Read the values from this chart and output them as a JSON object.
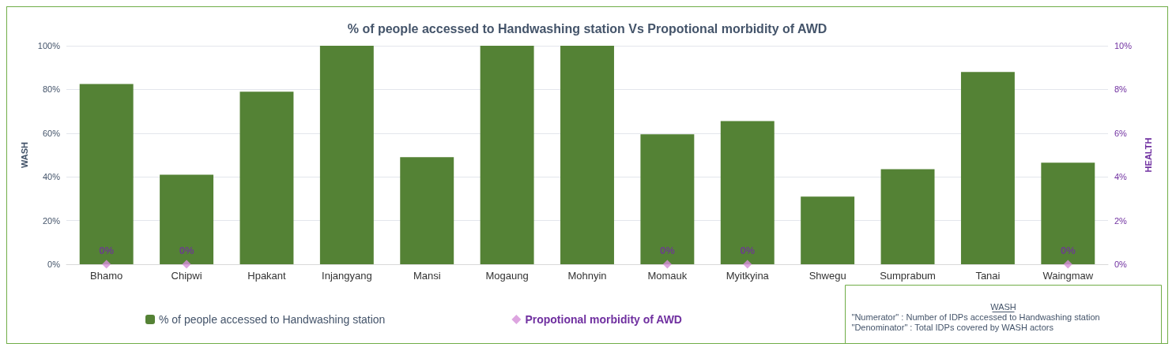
{
  "chart_data": {
    "type": "bar",
    "title": "% of people accessed to Handwashing station Vs Propotional morbidity of AWD",
    "ylabel": "WASH",
    "y2label": "HEALTH",
    "categories": [
      "Bhamo",
      "Chipwi",
      "Hpakant",
      "Injangyang",
      "Mansi",
      "Mogaung",
      "Mohnyin",
      "Momauk",
      "Myitkyina",
      "Shwegu",
      "Sumprabum",
      "Tanai",
      "Waingmaw"
    ],
    "series": [
      {
        "name": "% of people accessed to Handwashing station",
        "color": "#548235",
        "values": [
          82.5,
          41,
          79,
          100,
          49,
          100,
          100,
          59.5,
          65.5,
          31,
          43.5,
          88,
          46.5
        ]
      },
      {
        "name": "Propotional morbidity of AWD",
        "type": "scatter",
        "axis": "y2",
        "marker": "diamond",
        "color": "#d58fd8",
        "values": [
          0,
          0,
          null,
          null,
          null,
          null,
          null,
          0,
          0,
          null,
          null,
          null,
          0
        ],
        "value_labels": [
          "0%",
          "0%",
          null,
          null,
          null,
          null,
          null,
          "0%",
          "0%",
          null,
          null,
          null,
          "0%"
        ]
      }
    ],
    "ylim": [
      0,
      100
    ],
    "yticks": [
      {
        "value": 0,
        "label": "0%"
      },
      {
        "value": 20,
        "label": "20%"
      },
      {
        "value": 40,
        "label": "40%"
      },
      {
        "value": 60,
        "label": "60%"
      },
      {
        "value": 80,
        "label": "80%"
      },
      {
        "value": 100,
        "label": "100%"
      }
    ],
    "y2lim": [
      0,
      10
    ],
    "y2ticks": [
      {
        "value": 0,
        "label": "0%"
      },
      {
        "value": 2,
        "label": "2%"
      },
      {
        "value": 4,
        "label": "4%"
      },
      {
        "value": 6,
        "label": "6%"
      },
      {
        "value": 8,
        "label": "8%"
      },
      {
        "value": 10,
        "label": "10%"
      }
    ],
    "grid": "y",
    "legend": "bottom left",
    "annotations": [
      "WASH",
      "\"Numerator\" : Number of IDPs accessed to Handwashing station",
      "\"Denominator\" : Total IDPs covered by WASH actors"
    ]
  }
}
